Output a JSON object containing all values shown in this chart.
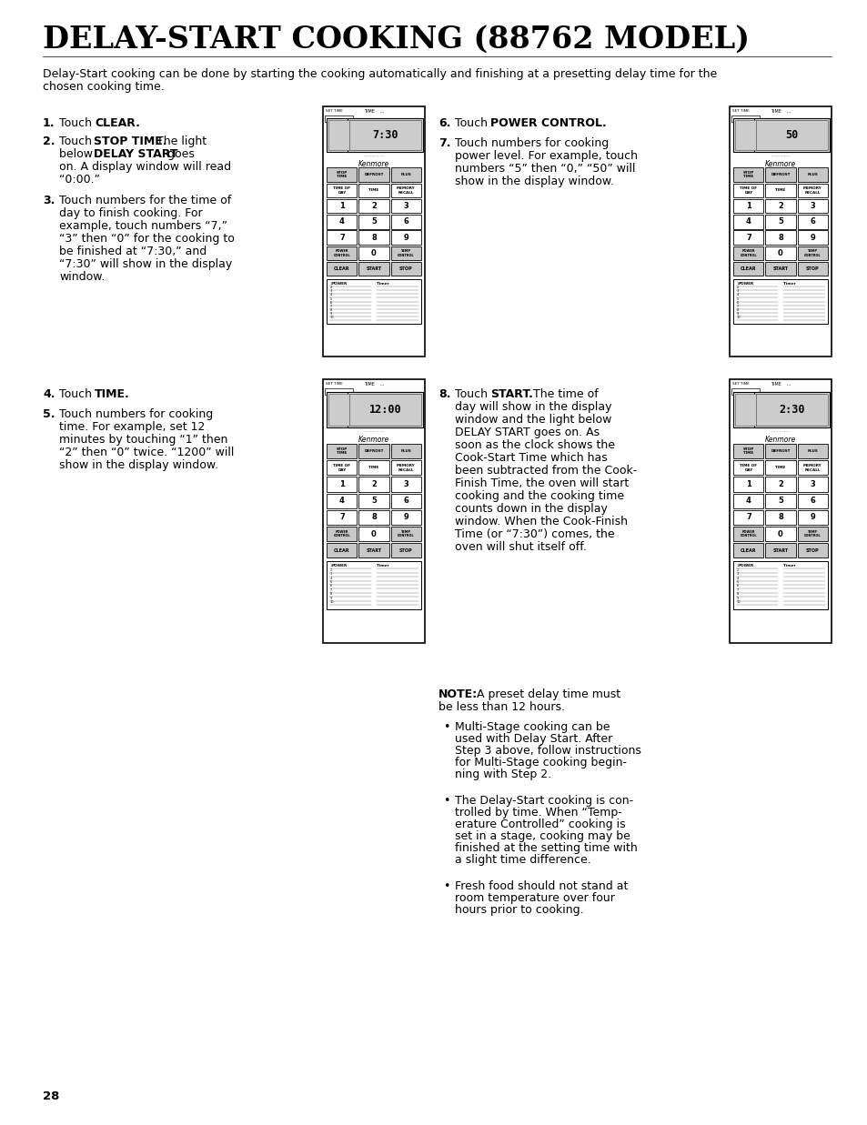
{
  "title": "DELAY-START COOKING (88762 MODEL)",
  "page_number": "28",
  "intro_text": "Delay-Start cooking can be done by starting the cooking automatically and finishing at a presetting delay time for the\nchosen cooking time.",
  "background_color": "#ffffff",
  "text_color": "#000000",
  "display1": "7:30",
  "display2": "12:00",
  "display3": "50",
  "display4": "2:30",
  "note_title": "NOTE:",
  "note_intro": " A preset delay time must\nbe less than 12 hours.",
  "bullets": [
    "Multi-Stage cooking can be\nused with Delay Start. After\nStep 3 above, follow instructions\nfor Multi-Stage cooking begin-\nning with Step 2.",
    "The Delay-Start cooking is con-\ntrolled by time. When “Temp-\nerature Controlled” cooking is\nset in a stage, cooking may be\nfinished at the setting time with\na slight time difference.",
    "Fresh food should not stand at\nroom temperature over four\nhours prior to cooking."
  ]
}
